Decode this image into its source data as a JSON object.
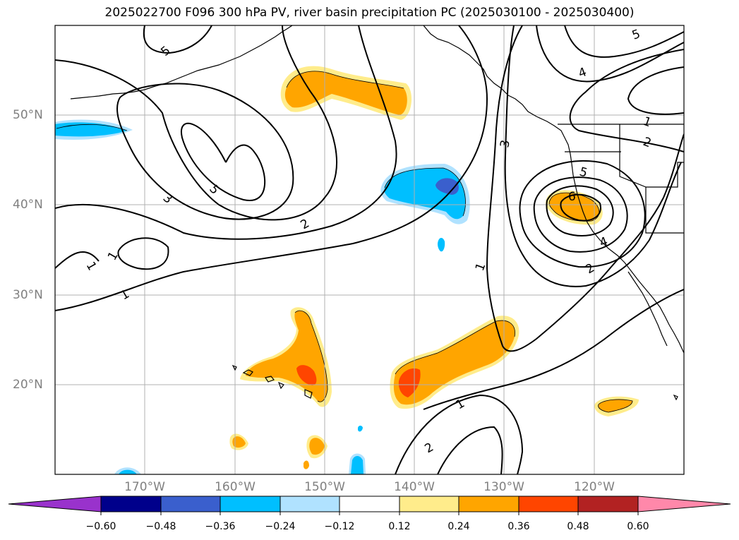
{
  "title": "2025022700 F096 300 hPa PV, river basin precipitation PC (2025030100 - 2025030400)",
  "longitude_labels": [
    "170°W",
    "160°W",
    "150°W",
    "140°W",
    "130°W",
    "120°W"
  ],
  "latitude_labels": [
    "50°N",
    "40°N",
    "30°N",
    "20°N"
  ],
  "colorbar": {
    "ticks": [
      "−0.60",
      "−0.48",
      "−0.36",
      "−0.24",
      "−0.12",
      "0.12",
      "0.24",
      "0.36",
      "0.48",
      "0.60"
    ],
    "colors": [
      "#9932cc",
      "#00008b",
      "#3a5fcd",
      "#00bfff",
      "#b0e2ff",
      "#ffffff",
      "#ffec8b",
      "#ffa500",
      "#ff4500",
      "#b22222",
      "#ff88aa"
    ]
  },
  "contour_labels": [
    "5",
    "5",
    "5",
    "4",
    "3",
    "3",
    "2",
    "1",
    "1",
    "1",
    "1",
    "1",
    "2",
    "2",
    "4",
    "5",
    "6",
    "1",
    "2"
  ],
  "colors": {
    "coast": "#000000",
    "grid": "#b0b0b0",
    "tick_text": "#808080"
  }
}
